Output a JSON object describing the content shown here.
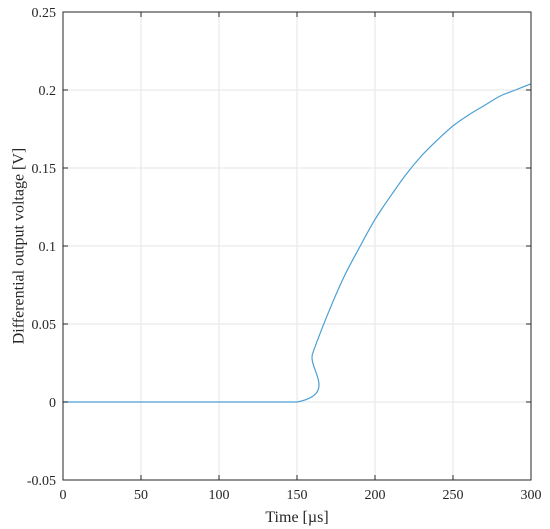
{
  "chart_data": {
    "type": "line",
    "title": "",
    "xlabel": "Time [µs]",
    "ylabel": "Differential output voltage [V]",
    "xlim": [
      0,
      300
    ],
    "ylim": [
      -0.05,
      0.25
    ],
    "xticks": [
      0,
      50,
      100,
      150,
      200,
      250,
      300
    ],
    "yticks": [
      -0.05,
      0,
      0.05,
      0.1,
      0.15,
      0.2,
      0.25
    ],
    "xtick_labels": [
      "0",
      "50",
      "100",
      "150",
      "200",
      "250",
      "300"
    ],
    "ytick_labels": [
      "-0.05",
      "0",
      "0.05",
      "0.1",
      "0.15",
      "0.2",
      "0.25"
    ],
    "grid": true,
    "series": [
      {
        "color": "#4a9fd5",
        "x": [
          0,
          150,
          160,
          170,
          180,
          190,
          200,
          210,
          220,
          230,
          240,
          250,
          260,
          270,
          280,
          290,
          300
        ],
        "y": [
          0,
          0,
          0.031,
          0.057,
          0.08,
          0.099,
          0.117,
          0.132,
          0.146,
          0.158,
          0.168,
          0.177,
          0.184,
          0.19,
          0.196,
          0.2,
          0.204
        ]
      }
    ]
  }
}
